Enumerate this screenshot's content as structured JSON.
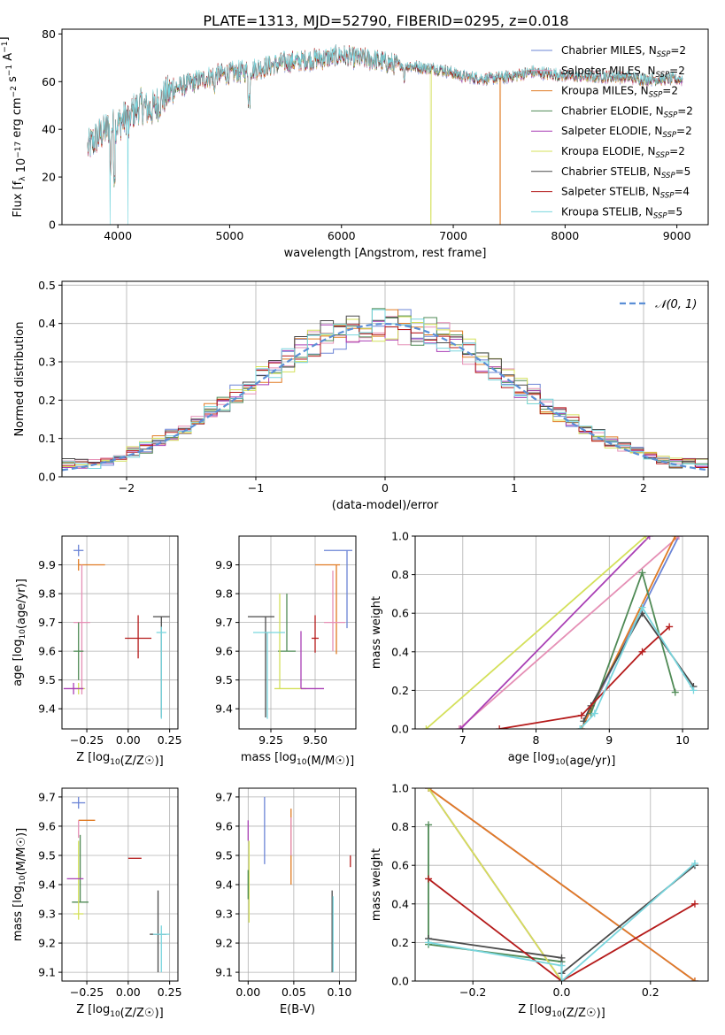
{
  "title": "PLATE=1313, MJD=52790, FIBERID=0295, z=0.018",
  "colors": {
    "Chabrier MILES": "#6b84d6",
    "Salpeter MILES": "#e58fb5",
    "Kroupa MILES": "#e07b24",
    "Chabrier ELODIE": "#4f8a55",
    "Salpeter ELODIE": "#a93fb5",
    "Kroupa ELODIE": "#d4e05a",
    "Chabrier STELIB": "#4a4a4a",
    "Salpeter STELIB": "#b51b1b",
    "Kroupa STELIB": "#79d6de",
    "gaussian": "#5b8fd6"
  },
  "chart_data": [
    {
      "id": "spectrum",
      "type": "line",
      "xlabel": "wavelength [Angstrom, rest frame]",
      "ylabel": "Flux [f_λ 10^-17 erg cm^-2 s^-1 A^-1]",
      "xlim": [
        3500,
        9280
      ],
      "ylim": [
        0,
        82
      ],
      "xticks": [
        "4000",
        "5000",
        "6000",
        "7000",
        "8000",
        "9000"
      ],
      "yticks": [
        "0",
        "20",
        "40",
        "60",
        "80"
      ],
      "grid": false,
      "legend_position": "top-right",
      "legend": [
        {
          "name": "Chabrier MILES",
          "label_main": "Chabrier MILES, N",
          "sub": "SSP",
          "suffix": "=2"
        },
        {
          "name": "Salpeter MILES",
          "label_main": "Salpeter MILES, N",
          "sub": "SSP",
          "suffix": "=2"
        },
        {
          "name": "Kroupa MILES",
          "label_main": "Kroupa MILES, N",
          "sub": "SSP",
          "suffix": "=2"
        },
        {
          "name": "Chabrier ELODIE",
          "label_main": "Chabrier ELODIE, N",
          "sub": "SSP",
          "suffix": "=2"
        },
        {
          "name": "Salpeter ELODIE",
          "label_main": "Salpeter ELODIE, N",
          "sub": "SSP",
          "suffix": "=2"
        },
        {
          "name": "Kroupa ELODIE",
          "label_main": "Kroupa ELODIE, N",
          "sub": "SSP",
          "suffix": "=2"
        },
        {
          "name": "Chabrier STELIB",
          "label_main": "Chabrier STELIB, N",
          "sub": "SSP",
          "suffix": "=5"
        },
        {
          "name": "Salpeter STELIB",
          "label_main": "Salpeter STELIB, N",
          "sub": "SSP",
          "suffix": "=4"
        },
        {
          "name": "Kroupa STELIB",
          "label_main": "Kroupa STELIB, N",
          "sub": "SSP",
          "suffix": "=5"
        }
      ],
      "continuum": {
        "x": [
          3730,
          3800,
          3900,
          4000,
          4100,
          4200,
          4300,
          4400,
          4500,
          4700,
          4900,
          5100,
          5300,
          5500,
          5700,
          5900,
          6000,
          6100,
          6300,
          6500,
          6700,
          6900,
          7100,
          7300,
          7500,
          7700,
          7900,
          8100,
          8300,
          8500,
          8700,
          8900,
          9050
        ],
        "y": [
          32,
          36,
          40,
          42,
          46,
          50,
          48,
          53,
          57,
          60,
          63,
          64,
          66,
          68,
          69,
          70,
          71,
          70,
          69,
          67,
          66,
          65,
          62,
          61,
          62,
          64,
          63,
          62,
          62,
          62,
          61,
          61,
          61
        ]
      },
      "dips": [
        {
          "series": "Kroupa STELIB",
          "x": 3930,
          "y": 0
        },
        {
          "series": "Kroupa STELIB",
          "x": 4090,
          "y": 0
        },
        {
          "series": "Kroupa ELODIE",
          "x": 6800,
          "y": 0
        },
        {
          "series": "Kroupa MILES",
          "x": 7420,
          "y": 0
        }
      ]
    },
    {
      "id": "residuals",
      "type": "step",
      "xlabel": "(data-model)/error",
      "ylabel": "Normed distribution",
      "xlim": [
        -2.5,
        2.5
      ],
      "ylim": [
        0,
        0.51
      ],
      "xticks": [
        "−2",
        "−1",
        "0",
        "1",
        "2"
      ],
      "yticks": [
        "0.0",
        "0.1",
        "0.2",
        "0.3",
        "0.4",
        "0.5"
      ],
      "grid": true,
      "legend_position": "top-right",
      "gaussian_label": "𝒩(0, 1)",
      "bin_edges_start": -2.5,
      "bin_width": 0.1
    },
    {
      "id": "age-vs-Z",
      "type": "errorbar",
      "xlabel": "Z [log10(Z/Z☉)]",
      "ylabel": "age  [log10(age/yr)]",
      "xlim": [
        -0.4,
        0.3
      ],
      "ylim": [
        9.33,
        10.0
      ],
      "xticks": [
        "−0.25",
        "0.00",
        "0.25"
      ],
      "yticks": [
        "9.4",
        "9.5",
        "9.6",
        "9.7",
        "9.8",
        "9.9"
      ],
      "grid": true,
      "points": [
        {
          "series": "Chabrier MILES",
          "x": -0.3,
          "y": 9.95,
          "xerr": 0.03,
          "yerr": [
            0.02,
            0.02
          ]
        },
        {
          "series": "Kroupa MILES",
          "x": -0.3,
          "y": 9.9,
          "xerr": [
            0.0,
            0.16
          ],
          "yerr": [
            0.02,
            0.02
          ]
        },
        {
          "series": "Salpeter MILES",
          "x": -0.28,
          "y": 9.7,
          "xerr": 0.05,
          "yerr": [
            0.25,
            0.2
          ]
        },
        {
          "series": "Chabrier ELODIE",
          "x": -0.3,
          "y": 9.6,
          "xerr": 0.03,
          "yerr": [
            0.1,
            0.1
          ]
        },
        {
          "series": "Kroupa ELODIE",
          "x": -0.3,
          "y": 9.47,
          "xerr": 0.04,
          "yerr": [
            0.02,
            0.02
          ]
        },
        {
          "series": "Salpeter ELODIE",
          "x": -0.33,
          "y": 9.47,
          "xerr": 0.06,
          "yerr": [
            0.02,
            0.02
          ]
        },
        {
          "series": "Chabrier STELIB",
          "x": 0.2,
          "y": 9.72,
          "xerr": 0.05,
          "yerr": [
            0.35,
            0.0
          ]
        },
        {
          "series": "Salpeter STELIB",
          "x": 0.06,
          "y": 9.645,
          "xerr": 0.08,
          "yerr": [
            0.07,
            0.08
          ]
        },
        {
          "series": "Kroupa STELIB",
          "x": 0.2,
          "y": 9.665,
          "xerr": 0.03,
          "yerr": [
            0.3,
            0.02
          ]
        }
      ]
    },
    {
      "id": "age-vs-mass",
      "type": "errorbar",
      "xlabel": "mass [log10(M/M☉)]",
      "ylabel": "",
      "xlim": [
        9.07,
        9.73
      ],
      "ylim": [
        9.33,
        10.0
      ],
      "xticks": [
        "9.25",
        "9.50"
      ],
      "yticks": [
        "9.4",
        "9.5",
        "9.6",
        "9.7",
        "9.8",
        "9.9"
      ],
      "grid": true,
      "points": [
        {
          "series": "Chabrier MILES",
          "x": 9.68,
          "y": 9.95,
          "xerr": [
            0.13,
            0.03
          ],
          "yerr": [
            0.27,
            0.0
          ]
        },
        {
          "series": "Kroupa MILES",
          "x": 9.62,
          "y": 9.9,
          "xerr": [
            0.12,
            0.02
          ],
          "yerr": [
            0.31,
            0.0
          ]
        },
        {
          "series": "Salpeter MILES",
          "x": 9.6,
          "y": 9.7,
          "xerr": [
            0.05,
            0.07
          ],
          "yerr": [
            0.1,
            0.18
          ]
        },
        {
          "series": "Chabrier ELODIE",
          "x": 9.34,
          "y": 9.6,
          "xerr": 0.05,
          "yerr": [
            0.0,
            0.2
          ]
        },
        {
          "series": "Kroupa ELODIE",
          "x": 9.3,
          "y": 9.47,
          "xerr": [
            0.03,
            0.15
          ],
          "yerr": [
            0.0,
            0.33
          ]
        },
        {
          "series": "Salpeter ELODIE",
          "x": 9.42,
          "y": 9.47,
          "xerr": [
            0.0,
            0.13
          ],
          "yerr": [
            0.0,
            0.2
          ]
        },
        {
          "series": "Chabrier STELIB",
          "x": 9.22,
          "y": 9.72,
          "xerr": [
            0.1,
            0.05
          ],
          "yerr": [
            0.35,
            0.0
          ]
        },
        {
          "series": "Salpeter STELIB",
          "x": 9.5,
          "y": 9.645,
          "xerr": 0.02,
          "yerr": [
            0.05,
            0.08
          ]
        },
        {
          "series": "Kroupa STELIB",
          "x": 9.23,
          "y": 9.665,
          "xerr": [
            0.08,
            0.1
          ],
          "yerr": [
            0.3,
            0.0
          ]
        }
      ]
    },
    {
      "id": "weight-vs-age",
      "type": "line",
      "xlabel": "age  [log10(age/yr)]",
      "ylabel": "mass weight",
      "xlim": [
        6.35,
        10.35
      ],
      "ylim": [
        0,
        1.0
      ],
      "xticks": [
        "7",
        "8",
        "9",
        "10"
      ],
      "yticks": [
        "0.0",
        "0.2",
        "0.4",
        "0.6",
        "0.8",
        "1.0"
      ],
      "grid": true,
      "series": [
        {
          "name": "Chabrier MILES",
          "x": [
            8.62,
            9.95
          ],
          "y": [
            0.0,
            1.0
          ]
        },
        {
          "name": "Salpeter MILES",
          "x": [
            6.95,
            9.95
          ],
          "y": [
            0.0,
            1.0
          ]
        },
        {
          "name": "Kroupa MILES",
          "x": [
            8.62,
            9.9
          ],
          "y": [
            0.0,
            1.0
          ]
        },
        {
          "name": "Chabrier ELODIE",
          "x": [
            8.75,
            9.45,
            9.9
          ],
          "y": [
            0.08,
            0.81,
            0.19
          ]
        },
        {
          "name": "Salpeter ELODIE",
          "x": [
            6.97,
            9.55
          ],
          "y": [
            0.0,
            1.0
          ]
        },
        {
          "name": "Kroupa ELODIE",
          "x": [
            6.5,
            9.5
          ],
          "y": [
            0.0,
            1.0
          ]
        },
        {
          "name": "Chabrier STELIB",
          "x": [
            8.65,
            8.75,
            9.45,
            10.15
          ],
          "y": [
            0.04,
            0.12,
            0.6,
            0.22
          ]
        },
        {
          "name": "Salpeter STELIB",
          "x": [
            7.5,
            8.62,
            9.45,
            9.82
          ],
          "y": [
            0.0,
            0.07,
            0.4,
            0.53
          ]
        },
        {
          "name": "Kroupa STELIB",
          "x": [
            8.6,
            8.8,
            9.45,
            10.15
          ],
          "y": [
            0.0,
            0.08,
            0.63,
            0.2
          ]
        }
      ]
    },
    {
      "id": "mass-vs-Z",
      "type": "errorbar",
      "xlabel": "Z [log10(Z/Z☉)]",
      "ylabel": "mass [log10(M/M☉)]",
      "xlim": [
        -0.4,
        0.3
      ],
      "ylim": [
        9.07,
        9.73
      ],
      "xticks": [
        "−0.25",
        "0.00",
        "0.25"
      ],
      "yticks": [
        "9.1",
        "9.2",
        "9.3",
        "9.4",
        "9.5",
        "9.6",
        "9.7"
      ],
      "grid": true,
      "points": [
        {
          "series": "Chabrier MILES",
          "x": -0.3,
          "y": 9.68,
          "xerr": 0.04,
          "yerr": [
            0.02,
            0.02
          ]
        },
        {
          "series": "Kroupa MILES",
          "x": -0.3,
          "y": 9.62,
          "xerr": [
            0.0,
            0.1
          ],
          "yerr": [
            0.0,
            0.0
          ]
        },
        {
          "series": "Salpeter MILES",
          "x": -0.3,
          "y": 9.6,
          "xerr": 0.0,
          "yerr": [
            0.04,
            0.02
          ]
        },
        {
          "series": "Chabrier ELODIE",
          "x": -0.29,
          "y": 9.34,
          "xerr": 0.05,
          "yerr": [
            0.0,
            0.23
          ]
        },
        {
          "series": "Kroupa ELODIE",
          "x": -0.3,
          "y": 9.3,
          "xerr": 0.03,
          "yerr": [
            0.02,
            0.25
          ]
        },
        {
          "series": "Salpeter ELODIE",
          "x": -0.32,
          "y": 9.42,
          "xerr": 0.05,
          "yerr": [
            0.0,
            0.0
          ]
        },
        {
          "series": "Chabrier STELIB",
          "x": 0.18,
          "y": 9.23,
          "xerr": 0.05,
          "yerr": [
            0.13,
            0.15
          ]
        },
        {
          "series": "Salpeter STELIB",
          "x": 0.0,
          "y": 9.49,
          "xerr": [
            0.0,
            0.08
          ],
          "yerr": [
            0.0,
            0.0
          ]
        },
        {
          "series": "Kroupa STELIB",
          "x": 0.2,
          "y": 9.23,
          "xerr": 0.05,
          "yerr": [
            0.13,
            0.03
          ]
        }
      ]
    },
    {
      "id": "mass-vs-EBV",
      "type": "errorbar",
      "xlabel": "E(B-V)",
      "ylabel": "",
      "xlim": [
        -0.01,
        0.118
      ],
      "ylim": [
        9.07,
        9.73
      ],
      "xticks": [
        "0.00",
        "0.05",
        "0.10"
      ],
      "yticks": [
        "9.1",
        "9.2",
        "9.3",
        "9.4",
        "9.5",
        "9.6",
        "9.7"
      ],
      "grid": true,
      "points": [
        {
          "series": "Chabrier MILES",
          "x": 0.018,
          "y": 9.58,
          "yerr": [
            0.11,
            0.12
          ]
        },
        {
          "series": "Kroupa MILES",
          "x": 0.047,
          "y": 9.53,
          "yerr": [
            0.13,
            0.13
          ]
        },
        {
          "series": "Salpeter MILES",
          "x": 0.047,
          "y": 9.55,
          "yerr": [
            0.05,
            0.08
          ]
        },
        {
          "series": "Salpeter ELODIE",
          "x": 0.0,
          "y": 9.58,
          "yerr": [
            0.03,
            0.04
          ]
        },
        {
          "series": "Kroupa ELODIE",
          "x": 0.001,
          "y": 9.42,
          "yerr": [
            0.15,
            0.13
          ]
        },
        {
          "series": "Chabrier ELODIE",
          "x": 0.0,
          "y": 9.4,
          "yerr": [
            0.05,
            0.05
          ]
        },
        {
          "series": "Chabrier STELIB",
          "x": 0.092,
          "y": 9.24,
          "yerr": [
            0.14,
            0.14
          ]
        },
        {
          "series": "Kroupa STELIB",
          "x": 0.093,
          "y": 9.23,
          "yerr": [
            0.13,
            0.13
          ]
        },
        {
          "series": "Salpeter STELIB",
          "x": 0.112,
          "y": 9.48,
          "yerr": [
            0.02,
            0.02
          ]
        }
      ]
    },
    {
      "id": "weight-vs-Z",
      "type": "line",
      "xlabel": "Z [log10(Z/Z☉)]",
      "ylabel": "mass weight",
      "xlim": [
        -0.33,
        0.33
      ],
      "ylim": [
        0,
        1.0
      ],
      "xticks": [
        "−0.2",
        "0.0",
        "0.2"
      ],
      "yticks": [
        "0.0",
        "0.2",
        "0.4",
        "0.6",
        "0.8",
        "1.0"
      ],
      "grid": true,
      "series": [
        {
          "name": "Chabrier MILES",
          "x": [
            -0.3,
            0.3
          ],
          "y": [
            1.0,
            0.0
          ]
        },
        {
          "name": "Salpeter MILES",
          "x": [
            -0.3,
            0.3
          ],
          "y": [
            1.0,
            0.0
          ]
        },
        {
          "name": "Kroupa MILES",
          "x": [
            -0.3,
            0.3
          ],
          "y": [
            1.0,
            0.0
          ]
        },
        {
          "name": "Chabrier ELODIE",
          "x": [
            -0.3,
            -0.3,
            0.0
          ],
          "y": [
            0.81,
            0.19,
            0.1
          ]
        },
        {
          "name": "Salpeter ELODIE",
          "x": [
            -0.3,
            0.0
          ],
          "y": [
            1.0,
            0.0
          ]
        },
        {
          "name": "Kroupa ELODIE",
          "x": [
            -0.3,
            0.0
          ],
          "y": [
            1.0,
            0.0
          ]
        },
        {
          "name": "Chabrier STELIB",
          "x": [
            -0.3,
            0.0,
            0.0,
            0.3
          ],
          "y": [
            0.22,
            0.12,
            0.04,
            0.6
          ]
        },
        {
          "name": "Salpeter STELIB",
          "x": [
            -0.3,
            0.0,
            0.3
          ],
          "y": [
            0.53,
            0.0,
            0.4
          ]
        },
        {
          "name": "Kroupa STELIB",
          "x": [
            -0.3,
            0.0,
            0.0,
            0.3
          ],
          "y": [
            0.2,
            0.08,
            0.0,
            0.61
          ]
        }
      ]
    }
  ]
}
